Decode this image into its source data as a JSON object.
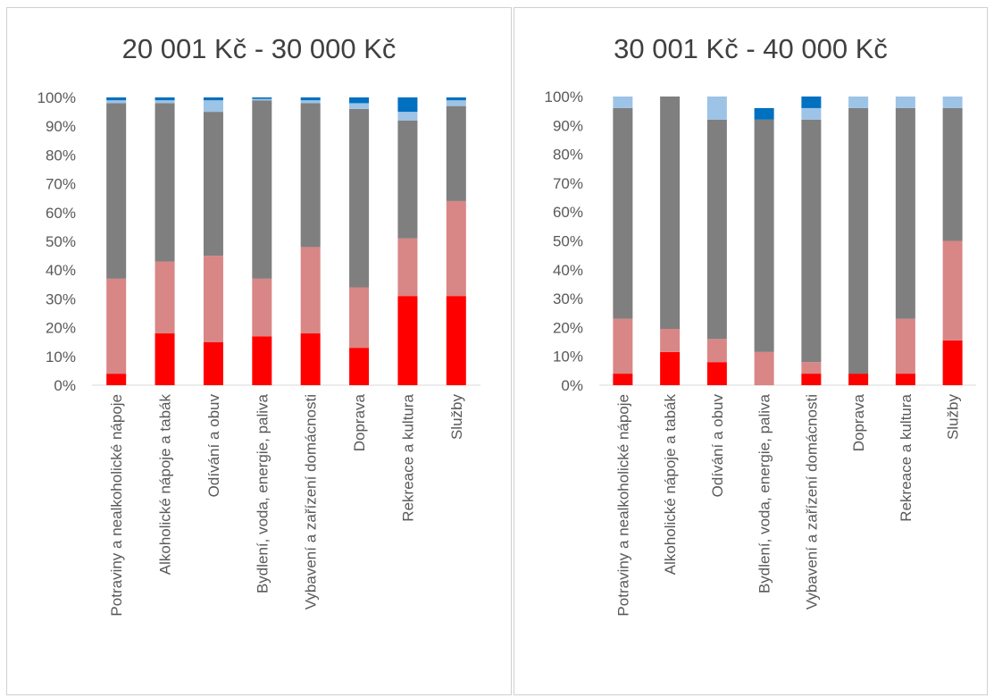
{
  "colors": {
    "s1": "#ff0000",
    "s2": "#d98686",
    "s3": "#7f7f7f",
    "s4": "#9dc3e6",
    "s5": "#0070c0",
    "text": "#595959",
    "gridline": "#d9d9d9"
  },
  "chart_data": [
    {
      "type": "bar",
      "stacked": "percent",
      "title": "20 001 Kč - 30 000 Kč",
      "categories": [
        "Potraviny a nealkoholické nápoje",
        "Alkoholické nápoje a tabák",
        "Odívání a obuv",
        "Bydlení, voda, energie, paliva",
        "Vybavení a zařízení domácnosti",
        "Doprava",
        "Rekreace a kultura",
        "Služby"
      ],
      "yticks": [
        "0%",
        "10%",
        "20%",
        "30%",
        "40%",
        "50%",
        "60%",
        "70%",
        "80%",
        "90%",
        "100%"
      ],
      "ylim": [
        0,
        100
      ],
      "grid": false,
      "series": [
        {
          "color_key": "s1",
          "values": [
            4,
            18,
            15,
            17,
            18,
            13,
            31,
            31
          ]
        },
        {
          "color_key": "s2",
          "values": [
            33,
            25,
            30,
            20,
            30,
            21,
            20,
            33
          ]
        },
        {
          "color_key": "s3",
          "values": [
            61,
            55,
            50,
            62,
            50,
            62,
            41,
            33
          ]
        },
        {
          "color_key": "s4",
          "values": [
            1,
            1,
            4,
            0.5,
            1,
            2,
            3,
            2
          ]
        },
        {
          "color_key": "s5",
          "values": [
            1,
            1,
            1,
            0.5,
            1,
            2,
            5,
            1
          ]
        }
      ]
    },
    {
      "type": "bar",
      "stacked": "percent",
      "title": "30 001 Kč - 40 000 Kč",
      "categories": [
        "Potraviny a nealkoholické nápoje",
        "Alkoholické nápoje a tabák",
        "Odívání a obuv",
        "Bydlení, voda, energie, paliva",
        "Vybavení a zařízení domácnosti",
        "Doprava",
        "Rekreace a kultura",
        "Služby"
      ],
      "yticks": [
        "0%",
        "10%",
        "20%",
        "30%",
        "40%",
        "50%",
        "60%",
        "70%",
        "80%",
        "90%",
        "100%"
      ],
      "ylim": [
        0,
        100
      ],
      "grid": false,
      "series": [
        {
          "color_key": "s1",
          "values": [
            4,
            11.5,
            8,
            0,
            4,
            4,
            4,
            15.5
          ]
        },
        {
          "color_key": "s2",
          "values": [
            19,
            8,
            8,
            11.5,
            4,
            0,
            19,
            34.5
          ]
        },
        {
          "color_key": "s3",
          "values": [
            73,
            80.5,
            76,
            80.5,
            84,
            92,
            73,
            46
          ]
        },
        {
          "color_key": "s4",
          "values": [
            4,
            0,
            8,
            0,
            4,
            4,
            4,
            4
          ]
        },
        {
          "color_key": "s5",
          "values": [
            0,
            0,
            0,
            4,
            4,
            0,
            0,
            0
          ]
        }
      ]
    }
  ]
}
